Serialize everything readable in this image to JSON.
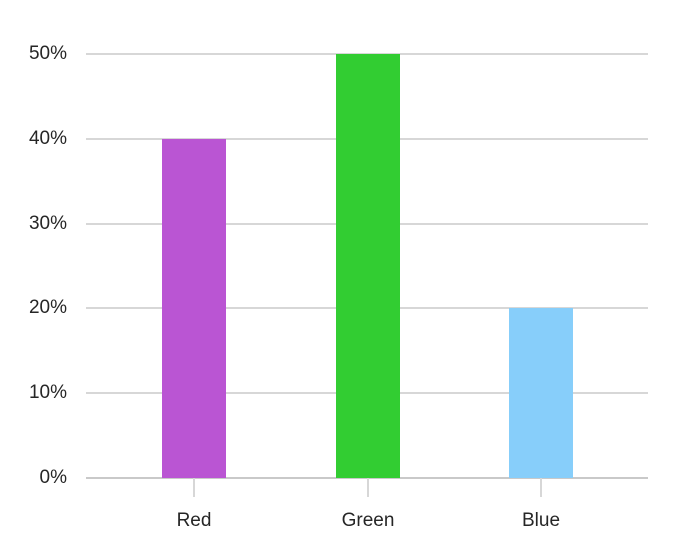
{
  "chart_data": {
    "type": "bar",
    "title": "",
    "xlabel": "",
    "ylabel": "",
    "categories": [
      "Red",
      "Green",
      "Blue"
    ],
    "values": [
      40,
      50,
      20
    ],
    "value_unit": "percent",
    "ylim": [
      0,
      50
    ],
    "y_tick_step": 10,
    "y_tick_labels": [
      "0%",
      "10%",
      "20%",
      "30%",
      "40%",
      "50%"
    ],
    "grid": true,
    "legend_position": "none",
    "bar_colors": [
      "#ba55d3",
      "#32cd32",
      "#87cefa"
    ],
    "colors": {
      "background": "#ffffff",
      "gridline": "#d7d7d7",
      "axis_baseline": "#c9c9c9",
      "tick_mark": "#d7d7d7",
      "label_text": "#262626"
    }
  }
}
